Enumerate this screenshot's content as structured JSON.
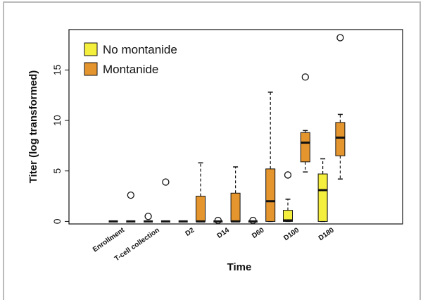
{
  "chart_data": {
    "type": "boxplot",
    "x_label": "Time",
    "y_label": "Titer (log transformed)",
    "categories": [
      "Enrollment",
      "T-cell collection",
      "D2",
      "D14",
      "D60",
      "D100",
      "D180"
    ],
    "ylim": [
      -0.25,
      19
    ],
    "yticks": [
      0,
      5,
      10,
      15
    ],
    "legend": "top-left",
    "series": [
      {
        "name": "No montanide",
        "color": "#f4ee3c",
        "boxes": [
          {
            "min": 0,
            "q1": 0,
            "median": 0,
            "q3": 0,
            "max": 0,
            "outliers": []
          },
          {
            "min": 0,
            "q1": 0,
            "median": 0,
            "q3": 0,
            "max": 0,
            "outliers": [
              0.5
            ]
          },
          {
            "min": 0,
            "q1": 0,
            "median": 0,
            "q3": 0,
            "max": 0,
            "outliers": []
          },
          {
            "min": 0,
            "q1": 0,
            "median": 0,
            "q3": 0,
            "max": 0,
            "outliers": [
              0.1
            ]
          },
          {
            "min": 0,
            "q1": 0,
            "median": 0,
            "q3": 0,
            "max": 0,
            "outliers": [
              0.1
            ]
          },
          {
            "min": 0,
            "q1": 0,
            "median": 0.1,
            "q3": 1.1,
            "max": 2.2,
            "outliers": [
              4.6
            ]
          },
          {
            "min": 0,
            "q1": 0,
            "median": 3.1,
            "q3": 4.7,
            "max": 6.2,
            "outliers": []
          }
        ]
      },
      {
        "name": "Montanide",
        "color": "#e5952e",
        "boxes": [
          {
            "min": 0,
            "q1": 0,
            "median": 0,
            "q3": 0,
            "max": 0,
            "outliers": [
              2.6
            ]
          },
          {
            "min": 0,
            "q1": 0,
            "median": 0,
            "q3": 0,
            "max": 0,
            "outliers": [
              3.9
            ]
          },
          {
            "min": 0,
            "q1": 0,
            "median": 0,
            "q3": 2.5,
            "max": 5.8,
            "outliers": []
          },
          {
            "min": 0,
            "q1": 0,
            "median": 0,
            "q3": 2.8,
            "max": 5.4,
            "outliers": []
          },
          {
            "min": 0,
            "q1": 0,
            "median": 2.0,
            "q3": 5.2,
            "max": 12.8,
            "outliers": []
          },
          {
            "min": 4.9,
            "q1": 5.9,
            "median": 7.8,
            "q3": 8.8,
            "max": 9.0,
            "outliers": [
              14.3
            ]
          },
          {
            "min": 4.2,
            "q1": 6.5,
            "median": 8.3,
            "q3": 9.8,
            "max": 10.6,
            "outliers": [
              18.2
            ]
          }
        ]
      }
    ]
  }
}
